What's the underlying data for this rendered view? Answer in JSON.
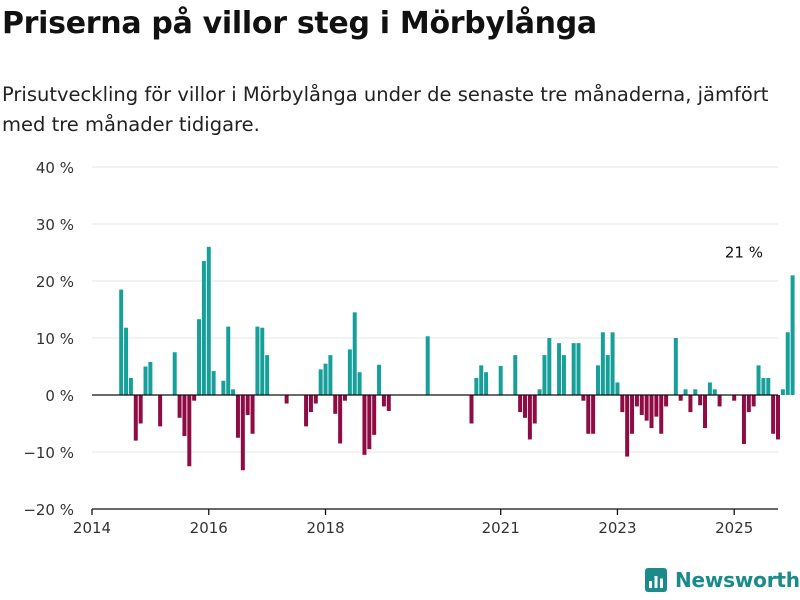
{
  "title": "Priserna på villor steg i Mörbylånga",
  "subtitle": "Prisutveckling för villor i Mörbylånga under de senaste tre månaderna, jämfört med tre månader tidigare.",
  "brand": {
    "name": "Newsworthy",
    "icon": "newsworthy-logo-icon",
    "color": "#1a8a8a"
  },
  "chart_data": {
    "type": "bar",
    "x_start": "2014-07",
    "x_step": "month",
    "y_unit": "%",
    "ylim": [
      -20,
      40
    ],
    "y_ticks": [
      -20,
      -10,
      0,
      10,
      20,
      30,
      40
    ],
    "y_tick_labels": [
      "−20 %",
      "−10 %",
      "0 %",
      "10 %",
      "20 %",
      "30 %",
      "40 %"
    ],
    "x_ticks": [
      "2014",
      "2016",
      "2018",
      "2021",
      "2023",
      "2025"
    ],
    "grid": true,
    "colors": {
      "positive": "#17a09a",
      "negative": "#8e0b43",
      "axis": "#111111",
      "grid": "#e6e6e6"
    },
    "annotation": {
      "text": "21 %",
      "x": "2025-03",
      "y": 21
    },
    "series": [
      {
        "values": [
          18.5,
          11.8,
          3,
          -8,
          -5,
          5,
          5.8,
          0,
          -5.5,
          0,
          0,
          7.5,
          -4,
          -7.2,
          -12.5,
          -1,
          13.3,
          23.5,
          26,
          4.2,
          0,
          2.5,
          12,
          1,
          -7.5,
          -13.2,
          -3.5,
          -6.8,
          12,
          11.8,
          7,
          0,
          0,
          0,
          -1.5,
          0,
          0,
          0,
          -5.5,
          -3,
          -1.5,
          4.5,
          5.5,
          7,
          -3.3,
          -8.5,
          -1,
          8,
          14.5,
          4,
          -10.5,
          -9.5,
          -7,
          5.3,
          -2,
          -2.8,
          0,
          0,
          0,
          0,
          0,
          0,
          0,
          10.3,
          0,
          0,
          0,
          0,
          0,
          0,
          0,
          0,
          -5,
          3,
          5.2,
          4,
          0,
          0,
          5.1,
          0,
          0,
          7,
          -3,
          -4,
          -7.8,
          -5,
          1,
          7,
          10,
          0,
          9.1,
          7,
          0,
          9.1,
          9.1,
          -1,
          -6.8,
          -6.8,
          5.2,
          11,
          7,
          11,
          2.2,
          -3,
          -10.8,
          -6.8,
          -2,
          -3.5,
          -4.5,
          -5.8,
          -3.8,
          -6.8,
          -2,
          0,
          10,
          -1,
          1,
          -3,
          1,
          -1.8,
          -5.8,
          2.2,
          1,
          -2,
          0,
          0,
          -1,
          0,
          -8.6,
          -3,
          -2,
          5.2,
          3,
          3,
          -6.8,
          -7.8,
          1,
          11,
          21
        ]
      }
    ]
  }
}
